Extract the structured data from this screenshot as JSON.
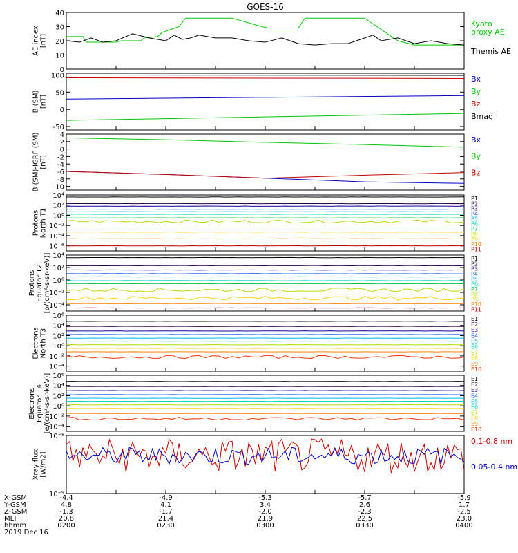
{
  "title": "GOES-16",
  "colors": {
    "black": "#000000",
    "green": "#00c800",
    "blue": "#0000c8",
    "red": "#c80000",
    "P": [
      "#000000",
      "#2a0040",
      "#1a00a0",
      "#0050ff",
      "#00b4ff",
      "#00dcb4",
      "#00c850",
      "#b4dc00",
      "#ffd200",
      "#ff8000",
      "#c80000"
    ],
    "E": [
      "#000000",
      "#2a0040",
      "#1a00a0",
      "#0050ff",
      "#00b4ff",
      "#00dcb4",
      "#b4dc00",
      "#ffd200",
      "#ff8000",
      "#ff3000",
      "#c80000",
      "#c80000"
    ]
  },
  "x_axis": {
    "row_labels": [
      "X-GSM",
      "Y-GSM",
      "Z-GSM",
      "MLT",
      "hhmm",
      "2019 Dec 16"
    ],
    "tick_columns": [
      {
        "x_gsm": "-4.4",
        "y_gsm": "4.8",
        "z_gsm": "-1.3",
        "mlt": "20.8",
        "hhmm": "0200"
      },
      {
        "x_gsm": "-4.9",
        "y_gsm": "4.1",
        "z_gsm": "-1.7",
        "mlt": "21.4",
        "hhmm": "0230"
      },
      {
        "x_gsm": "-5.3",
        "y_gsm": "3.4",
        "z_gsm": "-2.0",
        "mlt": "21.9",
        "hhmm": "0300"
      },
      {
        "x_gsm": "-5.7",
        "y_gsm": "2.6",
        "z_gsm": "-2.3",
        "mlt": "22.5",
        "hhmm": "0330"
      },
      {
        "x_gsm": "-5.9",
        "y_gsm": "1.7",
        "z_gsm": "-2.5",
        "mlt": "23.0",
        "hhmm": "0400"
      }
    ]
  },
  "chart_data": [
    {
      "type": "line",
      "ylabel": [
        "AE index",
        "[nT]"
      ],
      "ylim": [
        0,
        40
      ],
      "yticks": [
        {
          "v": 0,
          "t": "0"
        },
        {
          "v": 10,
          "t": "10"
        },
        {
          "v": 20,
          "t": "20"
        },
        {
          "v": 30,
          "t": "30"
        },
        {
          "v": 40,
          "t": "40"
        }
      ],
      "series": [
        {
          "name": "Kyoto proxy AE",
          "color": "green",
          "style": "step",
          "x": [
            0,
            10,
            12,
            30,
            33,
            45,
            47,
            55,
            58,
            68,
            72,
            100,
            240
          ],
          "y": [
            23,
            23,
            19,
            19,
            20,
            20,
            22,
            23,
            26,
            30,
            36,
            36,
            36
          ],
          "x2": [
            0,
            10,
            12,
            30,
            33,
            45,
            47,
            55,
            58,
            68,
            72,
            100,
            118,
            122,
            140,
            144,
            160,
            180,
            200,
            210,
            218,
            230,
            240
          ],
          "y2": [
            23,
            23,
            19,
            19,
            20,
            20,
            22,
            23,
            26,
            30,
            36,
            36,
            30,
            29,
            29,
            36,
            36,
            36,
            20,
            17,
            17,
            17,
            17
          ]
        },
        {
          "name": "Themis AE",
          "color": "black",
          "style": "line",
          "x": [
            0,
            8,
            15,
            22,
            30,
            40,
            50,
            60,
            65,
            70,
            75,
            80,
            90,
            100,
            110,
            120,
            130,
            135,
            140,
            150,
            160,
            170,
            175,
            180,
            185,
            190,
            200,
            210,
            220,
            230,
            240
          ],
          "y": [
            20,
            19,
            22,
            19,
            20,
            25,
            22,
            20,
            24,
            21,
            22,
            24,
            22,
            22,
            20,
            19,
            22,
            20,
            18,
            17,
            18,
            18,
            20,
            22,
            24,
            20,
            22,
            18,
            20,
            18,
            17
          ]
        }
      ]
    },
    {
      "type": "line",
      "ylabel": [
        "B (SM)",
        "[nT]"
      ],
      "ylim": [
        -60,
        105
      ],
      "yticks": [
        {
          "v": -50,
          "t": "-50"
        },
        {
          "v": 0,
          "t": "0"
        },
        {
          "v": 50,
          "t": "50"
        },
        {
          "v": 100,
          "t": "100"
        }
      ],
      "series": [
        {
          "name": "Bx",
          "color": "blue",
          "x": [
            0,
            240
          ],
          "y": [
            30,
            40
          ]
        },
        {
          "name": "By",
          "color": "green",
          "x": [
            0,
            240
          ],
          "y": [
            -32,
            -12
          ]
        },
        {
          "name": "Bz",
          "color": "red",
          "x": [
            0,
            240
          ],
          "y": [
            92,
            90
          ]
        },
        {
          "name": "Bmag",
          "color": "black",
          "x": [
            0,
            240
          ],
          "y": [
            100,
            99
          ]
        }
      ]
    },
    {
      "type": "line",
      "ylabel": [
        "B (SM)-IGRF (SM)",
        "[nT]"
      ],
      "ylim": [
        -11,
        4
      ],
      "yticks": [
        {
          "v": -10,
          "t": "-10"
        },
        {
          "v": -8,
          "t": "-8"
        },
        {
          "v": -6,
          "t": "-6"
        },
        {
          "v": -4,
          "t": "-4"
        },
        {
          "v": -2,
          "t": "-2"
        },
        {
          "v": 0,
          "t": "0"
        },
        {
          "v": 2,
          "t": "2"
        },
        {
          "v": 4,
          "t": "4"
        }
      ],
      "series": [
        {
          "name": "Bx",
          "color": "blue",
          "x": [
            0,
            60,
            120,
            180,
            240
          ],
          "y": [
            -6,
            -6.8,
            -7.8,
            -8.8,
            -9.2
          ]
        },
        {
          "name": "By",
          "color": "green",
          "x": [
            0,
            60,
            120,
            180,
            240
          ],
          "y": [
            3,
            2.5,
            1.8,
            1.2,
            0.5
          ]
        },
        {
          "name": "Bz",
          "color": "red",
          "x": [
            0,
            60,
            120,
            180,
            240
          ],
          "y": [
            -6,
            -6.8,
            -7.8,
            -7,
            -6.3
          ]
        }
      ]
    },
    {
      "type": "line",
      "log": true,
      "ylabel": [
        "Protons",
        "North T1"
      ],
      "ylim": [
        -7,
        4
      ],
      "yticks": [
        {
          "v": 4,
          "t": "10⁴"
        },
        {
          "v": 2,
          "t": "10²"
        },
        {
          "v": 0,
          "t": "10⁰"
        },
        {
          "v": -2,
          "t": "10⁻²"
        },
        {
          "v": -4,
          "t": "10⁻⁴"
        },
        {
          "v": -6,
          "t": "10⁻⁶"
        }
      ],
      "legend": [
        "P1",
        "P2",
        "P3",
        "P4",
        "P5",
        "P6",
        "P7",
        "P8",
        "P9",
        "P10",
        "P11"
      ],
      "levels": [
        3.6,
        2.3,
        1.8,
        1.2,
        0.7,
        0.2,
        -0.5,
        -1.2,
        -3.3,
        -4.5,
        -6
      ],
      "noisy": [
        7
      ]
    },
    {
      "type": "line",
      "log": true,
      "ylabel": [
        "Protons",
        "Equator T2",
        "[p/(cm²-s-sr-keV)]"
      ],
      "ylim": [
        -5,
        4
      ],
      "yticks": [
        {
          "v": 4,
          "t": "10⁴"
        },
        {
          "v": 2,
          "t": "10²"
        },
        {
          "v": 0,
          "t": "10⁰"
        },
        {
          "v": -2,
          "t": "10⁻²"
        },
        {
          "v": -4,
          "t": "10⁻⁴"
        }
      ],
      "legend": [
        "P1",
        "P2",
        "P3",
        "P4",
        "P5",
        "P6",
        "P7",
        "P8",
        "P9",
        "P10",
        "P11"
      ],
      "levels": [
        3.6,
        2.3,
        1.6,
        1.0,
        0.5,
        -0.1,
        -0.6,
        -1.6,
        -2.9,
        -3.8,
        -4.5
      ],
      "noisy": [
        7,
        8
      ]
    },
    {
      "type": "line",
      "log": true,
      "ylabel": [
        "Electrons",
        "North T3"
      ],
      "ylim": [
        -5,
        6
      ],
      "yticks": [
        {
          "v": 6,
          "t": "10⁶"
        },
        {
          "v": 4,
          "t": "10⁴"
        },
        {
          "v": 2,
          "t": "10²"
        },
        {
          "v": 0,
          "t": "10⁰"
        },
        {
          "v": -2,
          "t": "10⁻²"
        },
        {
          "v": -4,
          "t": "10⁻⁴"
        }
      ],
      "legend": [
        "E1",
        "E2",
        "E3",
        "E4",
        "E5",
        "E6",
        "E7",
        "E8",
        "E9",
        "E10"
      ],
      "levels": [
        4.8,
        3.8,
        2.9,
        2.2,
        1.5,
        0.9,
        0.2,
        -0.5,
        -1.2,
        -2.2
      ],
      "noisy": [
        9
      ]
    },
    {
      "type": "line",
      "log": true,
      "ylabel": [
        "Electrons",
        "Equator T4",
        "[e/(cm²-s-sr-keV)]"
      ],
      "ylim": [
        -5,
        6
      ],
      "yticks": [
        {
          "v": 6,
          "t": "10⁶"
        },
        {
          "v": 4,
          "t": "10⁴"
        },
        {
          "v": 2,
          "t": "10²"
        },
        {
          "v": 0,
          "t": "10⁰"
        },
        {
          "v": -2,
          "t": "10⁻²"
        },
        {
          "v": -4,
          "t": "10⁻⁴"
        }
      ],
      "legend": [
        "E1",
        "E2",
        "E3",
        "E4",
        "E5",
        "E6",
        "E7",
        "E8",
        "E9",
        "E10"
      ],
      "levels": [
        4.8,
        3.8,
        3.0,
        2.2,
        1.5,
        0.9,
        0.2,
        -0.5,
        -1.5,
        -2.5
      ],
      "noisy": [
        9
      ]
    },
    {
      "type": "line",
      "log": true,
      "ylabel": [
        "Xray flux",
        "[W/m2]"
      ],
      "ylim": [
        -9,
        -8
      ],
      "yticks": [
        {
          "v": -8,
          "t": "10⁻⁸"
        },
        {
          "v": -9,
          "t": "10⁻⁹"
        }
      ],
      "series": [
        {
          "name": "0.1-0.8 nm",
          "color": "red"
        },
        {
          "name": "0.05-0.4 nm",
          "color": "blue"
        }
      ]
    }
  ],
  "legends": {
    "ae": [
      {
        "text": "Kyoto",
        "color": "green"
      },
      {
        "text": "proxy AE",
        "color": "green"
      },
      {
        "text": "Themis AE",
        "color": "black"
      }
    ],
    "b": [
      {
        "text": "Bx",
        "color": "blue"
      },
      {
        "text": "By",
        "color": "green"
      },
      {
        "text": "Bz",
        "color": "red"
      },
      {
        "text": "Bmag",
        "color": "black"
      }
    ],
    "bigrf": [
      {
        "text": "Bx",
        "color": "blue"
      },
      {
        "text": "By",
        "color": "green"
      },
      {
        "text": "Bz",
        "color": "red"
      }
    ],
    "xray": [
      {
        "text": "0.1-0.8 nm",
        "color": "red"
      },
      {
        "text": "0.05-0.4 nm",
        "color": "blue"
      }
    ]
  }
}
